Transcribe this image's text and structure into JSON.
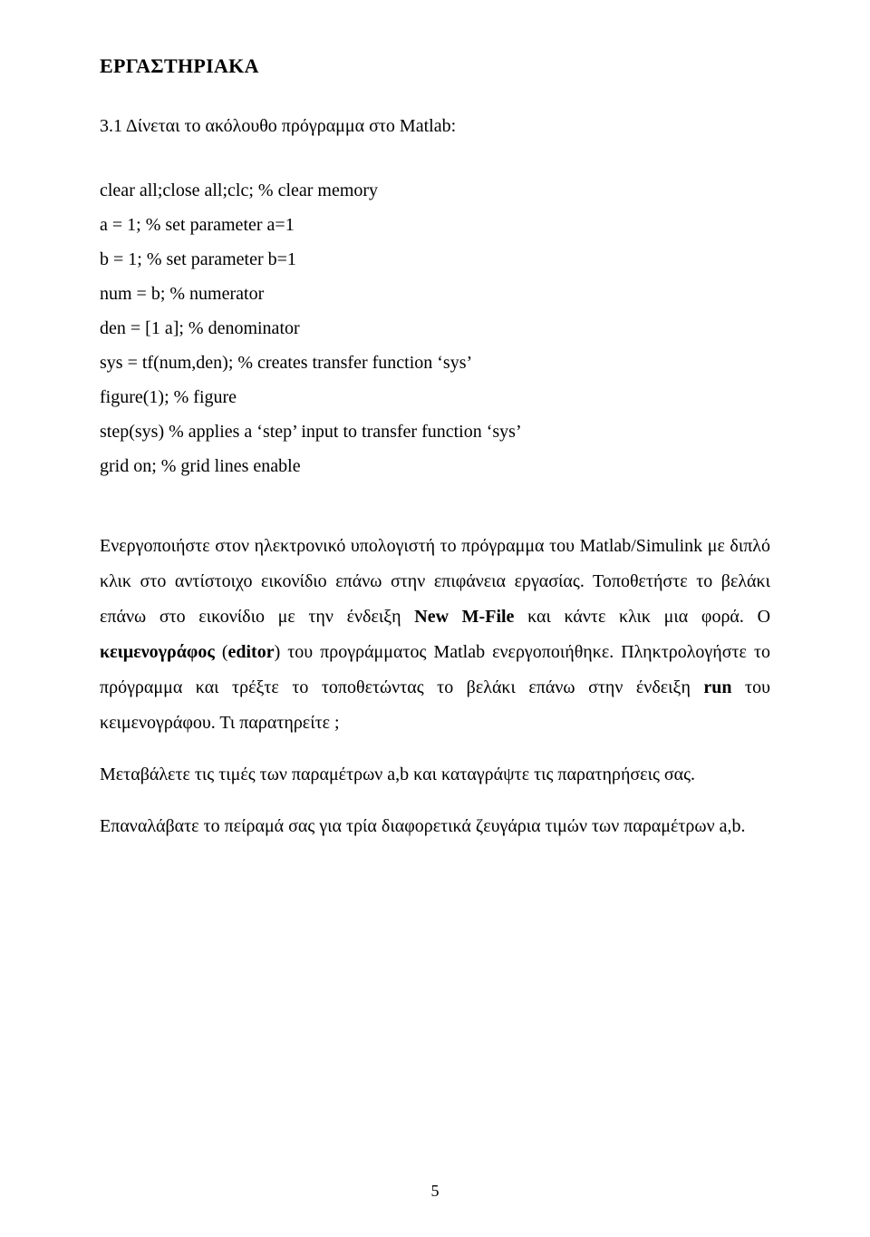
{
  "heading": "ΕΡΓΑΣΤΗΡΙΑΚΑ",
  "intro": "3.1    Δίνεται το ακόλουθο πρόγραμμα στο Matlab:",
  "code": [
    "clear all;close all;clc; % clear memory",
    "a = 1; % set parameter a=1",
    "b = 1; % set parameter b=1",
    "num = b; % numerator",
    "den = [1 a]; % denominator",
    "sys = tf(num,den); % creates transfer function ‘sys’",
    "figure(1); % figure",
    "step(sys) % applies a ‘step’ input to transfer function ‘sys’",
    "grid on; % grid lines enable"
  ],
  "para1_parts": {
    "p1": "Ενεργοποιήστε στον ηλεκτρονικό υπολογιστή το πρόγραμμα του Matlab/Simulink με διπλό κλικ στο αντίστοιχο εικονίδιο επάνω στην επιφάνεια εργασίας. Τοποθετήστε το βελάκι επάνω στο εικονίδιο με την ένδειξη ",
    "b1": "New M-File",
    "p2": " και κάντε κλικ μια φορά. Ο ",
    "b2": "κειμενογράφος",
    "p3": " (",
    "b3": "editor",
    "p4": ") του προγράμματος Matlab ενεργοποιήθηκε. Πληκτρολογήστε το πρόγραμμα και τρέξτε το τοποθετώντας το βελάκι επάνω στην ένδειξη ",
    "b4": "run",
    "p5": " του κειμενογράφου. Τι παρατηρείτε ;"
  },
  "para2": "Μεταβάλετε τις τιμές των παραμέτρων a,b και καταγράψτε τις παρατηρήσεις σας.",
  "para3": "Επαναλάβατε το πείραμά σας για τρία διαφορετικά ζευγάρια τιμών των παραμέτρων a,b.",
  "page_number": "5"
}
